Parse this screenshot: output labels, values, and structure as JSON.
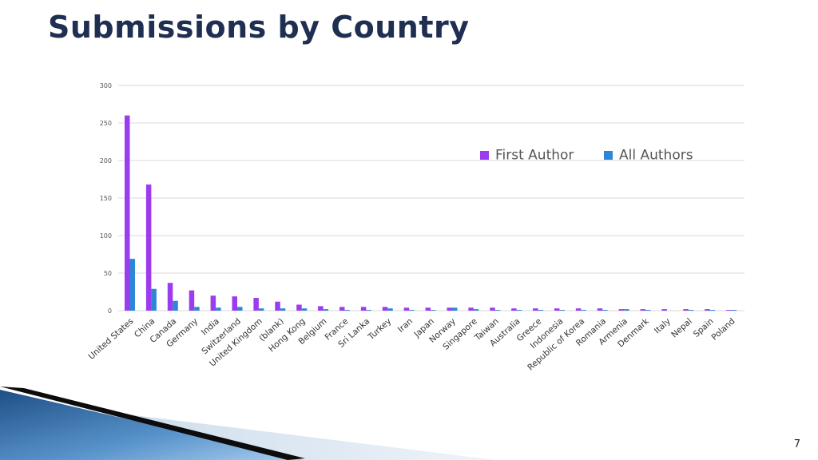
{
  "slide": {
    "title": "Submissions by Country",
    "page_number": "7"
  },
  "colors": {
    "first_author": "#9b3cf0",
    "all_authors": "#2e86d6",
    "grid": "#d9d9d9",
    "title": "#1f2f52"
  },
  "chart_data": {
    "type": "bar",
    "title": "",
    "xlabel": "",
    "ylabel": "",
    "ylim": [
      0,
      300
    ],
    "yticks": [
      0,
      50,
      100,
      150,
      200,
      250,
      300
    ],
    "grid": true,
    "legend_position": "top-right",
    "categories": [
      "United States",
      "China",
      "Canada",
      "Germany",
      "India",
      "Switzerland",
      "United Kingdom",
      "(blank)",
      "Hong Kong",
      "Belgium",
      "France",
      "Sri Lanka",
      "Turkey",
      "Iran",
      "Japan",
      "Norway",
      "Singapore",
      "Taiwan",
      "Australia",
      "Greece",
      "Indonesia",
      "Republic of Korea",
      "Romania",
      "Armenia",
      "Denmark",
      "Italy",
      "Nepal",
      "Spain",
      "Poland"
    ],
    "series": [
      {
        "name": "First Author",
        "values": [
          260,
          168,
          37,
          27,
          20,
          19,
          17,
          12,
          8,
          6,
          5,
          5,
          5,
          4,
          4,
          4,
          4,
          4,
          3,
          3,
          3,
          3,
          3,
          2,
          2,
          2,
          2,
          2,
          1
        ]
      },
      {
        "name": "All Authors",
        "values": [
          69,
          29,
          13,
          5,
          4,
          5,
          3,
          3,
          3,
          2,
          1,
          1,
          3,
          1,
          1,
          4,
          2,
          1,
          1,
          1,
          1,
          1,
          1,
          2,
          1,
          0,
          1,
          1,
          1
        ]
      }
    ]
  }
}
